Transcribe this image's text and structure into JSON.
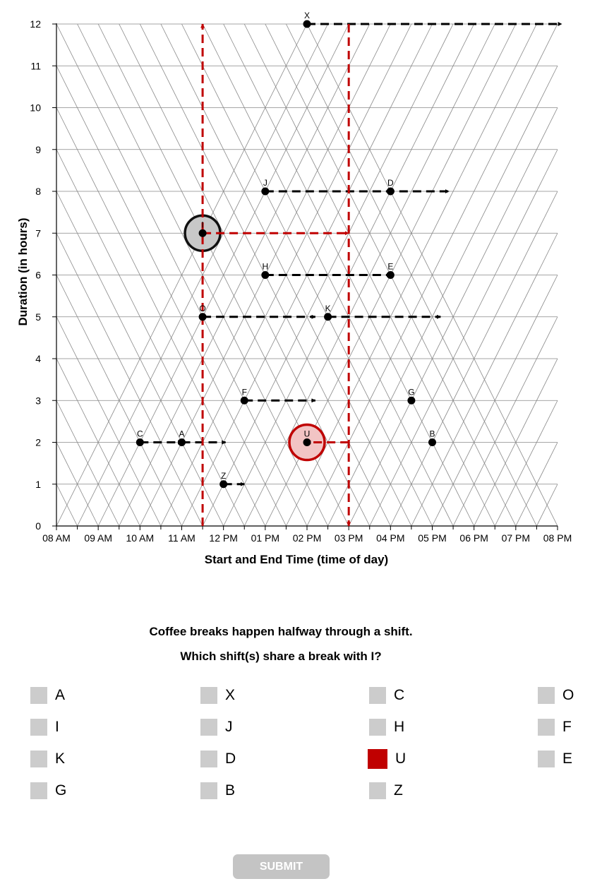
{
  "chart_data": {
    "type": "scatter",
    "xlabel": "Start and End Time (time of day)",
    "ylabel": "Duration (in hours)",
    "x_ticks": [
      "08 AM",
      "09 AM",
      "10 AM",
      "11 AM",
      "12 PM",
      "01 PM",
      "02 PM",
      "03 PM",
      "04 PM",
      "05 PM",
      "06 PM",
      "07 PM",
      "08 PM"
    ],
    "y_ticks": [
      "0",
      "1",
      "2",
      "3",
      "4",
      "5",
      "6",
      "7",
      "8",
      "9",
      "10",
      "11",
      "12"
    ],
    "xlim_hours": [
      8,
      20
    ],
    "ylim": [
      0,
      12
    ],
    "grid": "horizontal lines plus triangular (diagonal) grid",
    "points": [
      {
        "label": "X",
        "midpoint": 14,
        "duration": 12
      },
      {
        "label": "J",
        "midpoint": 13,
        "duration": 8
      },
      {
        "label": "D",
        "midpoint": 16,
        "duration": 8
      },
      {
        "label": "I",
        "midpoint": 11.5,
        "duration": 7
      },
      {
        "label": "H",
        "midpoint": 13,
        "duration": 6
      },
      {
        "label": "E",
        "midpoint": 16,
        "duration": 6
      },
      {
        "label": "O",
        "midpoint": 11.5,
        "duration": 5
      },
      {
        "label": "K",
        "midpoint": 14.5,
        "duration": 5
      },
      {
        "label": "F",
        "midpoint": 12.5,
        "duration": 3
      },
      {
        "label": "G",
        "midpoint": 16.5,
        "duration": 3
      },
      {
        "label": "C",
        "midpoint": 10,
        "duration": 2
      },
      {
        "label": "A",
        "midpoint": 11,
        "duration": 2
      },
      {
        "label": "U",
        "midpoint": 14,
        "duration": 2
      },
      {
        "label": "B",
        "midpoint": 17,
        "duration": 2
      },
      {
        "label": "Z",
        "midpoint": 12,
        "duration": 1
      }
    ],
    "black_arrows": [
      {
        "y": 12,
        "x1": 14,
        "x2": 20.1
      },
      {
        "y": 8,
        "x1": 13,
        "x2": 17.4
      },
      {
        "y": 6,
        "x1": 13,
        "x2": 16
      },
      {
        "y": 5,
        "x1": 11.5,
        "x2": 14.2
      },
      {
        "y": 5,
        "x1": 14.5,
        "x2": 17.2
      },
      {
        "y": 3,
        "x1": 12.5,
        "x2": 14.2
      },
      {
        "y": 2,
        "x1": 10,
        "x2": 11
      },
      {
        "y": 2,
        "x1": 11,
        "x2": 12.05
      },
      {
        "y": 1,
        "x1": 12,
        "x2": 12.5
      }
    ],
    "highlight": {
      "selected_point": "I",
      "marked_point": "U",
      "red_arrows": [
        {
          "x1": 11.5,
          "y1": 0,
          "x2": 11.5,
          "y2": 12
        },
        {
          "x1": 11.5,
          "y1": 7,
          "x2": 15,
          "y2": 7
        },
        {
          "x1": 15,
          "y1": 12,
          "x2": 15,
          "y2": 0
        },
        {
          "x1": 15,
          "y1": 2,
          "x2": 14,
          "y2": 2
        }
      ]
    }
  },
  "colors": {
    "highlight_red": "#c00000",
    "grid": "#888888",
    "checkbox": "#cccccc",
    "button": "#c4c4c4"
  },
  "question": {
    "line1": "Coffee breaks happen halfway through a shift.",
    "line2": "Which shift(s) share a break with I?"
  },
  "options": [
    {
      "label": "A",
      "checked": false
    },
    {
      "label": "X",
      "checked": false
    },
    {
      "label": "C",
      "checked": false
    },
    {
      "label": "O",
      "checked": false
    },
    {
      "label": "I",
      "checked": false
    },
    {
      "label": "J",
      "checked": false
    },
    {
      "label": "H",
      "checked": false
    },
    {
      "label": "F",
      "checked": false
    },
    {
      "label": "K",
      "checked": false
    },
    {
      "label": "D",
      "checked": false
    },
    {
      "label": "U",
      "checked": true
    },
    {
      "label": "E",
      "checked": false
    },
    {
      "label": "G",
      "checked": false
    },
    {
      "label": "B",
      "checked": false
    },
    {
      "label": "Z",
      "checked": false
    }
  ],
  "submit_label": "SUBMIT"
}
